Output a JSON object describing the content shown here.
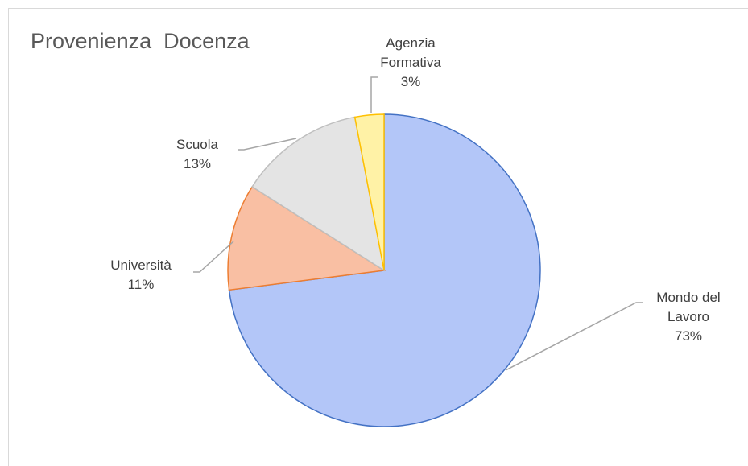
{
  "chart_data": {
    "type": "pie",
    "title": "Provenienza  Docenza",
    "categories": [
      "Mondo del Lavoro",
      "Università",
      "Scuola",
      "Agenzia Formativa"
    ],
    "values": [
      73,
      11,
      13,
      3
    ],
    "value_labels": [
      "73%",
      "11%",
      "13%",
      "3%"
    ],
    "colors": [
      "#b3c6f8",
      "#f9bfa3",
      "#e4e4e4",
      "#fff2a6"
    ],
    "edge_colors": [
      "#4472c4",
      "#ed7d31",
      "#bfbfbf",
      "#ffc000"
    ]
  }
}
